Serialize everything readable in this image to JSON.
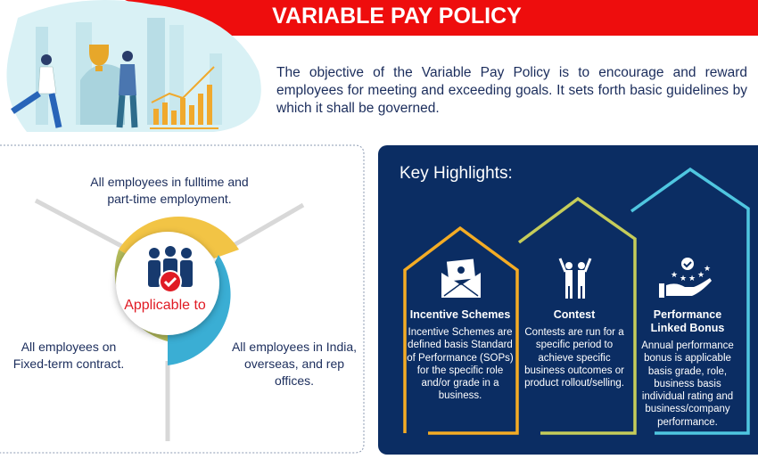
{
  "header": {
    "title": "VARIABLE PAY POLICY",
    "intro": "The objective of the Variable Pay Policy is to encourage and reward employees for meeting and exceeding goals. It sets forth basic guidelines by which it shall be governed."
  },
  "applicable": {
    "center_label": "Applicable to",
    "items": [
      {
        "text": "All employees in fulltime and part-time employment.",
        "color": "#f2c445"
      },
      {
        "text": "All employees on Fixed-term contract.",
        "color": "#b3bb5a"
      },
      {
        "text": "All employees in India, overseas, and rep offices.",
        "color": "#3aaed4"
      }
    ]
  },
  "highlights": {
    "title": "Key Highlights:",
    "background": "#0b2d63",
    "cards": [
      {
        "icon": "money-envelope-icon",
        "title": "Incentive Schemes",
        "body": "Incentive Schemes are defined basis Standard of Performance (SOPs) for the specific role and/or grade in a business.",
        "color": "#f4ac25"
      },
      {
        "icon": "celebrating-people-icon",
        "title": "Contest",
        "body": "Contests are run for a specific period to achieve specific business outcomes or product rollout/selling.",
        "color": "#c5cc5a"
      },
      {
        "icon": "hand-stars-check-icon",
        "title": "Performance Linked Bonus",
        "body": "Annual performance bonus is applicable basis grade, role, business basis individual rating and business/company performance.",
        "color": "#4fc6e0"
      }
    ]
  },
  "colors": {
    "banner": "#ee0d0d",
    "text": "#1b2d5c",
    "accent_red": "#e01b24"
  }
}
